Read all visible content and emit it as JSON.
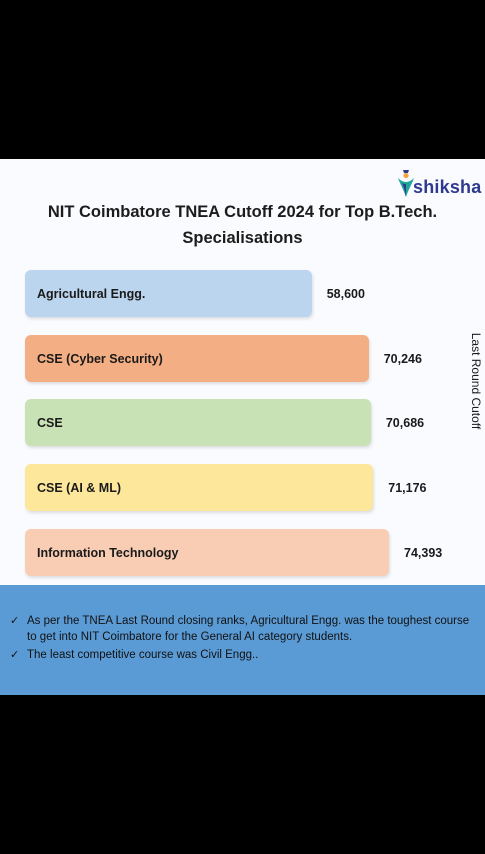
{
  "brand": {
    "name": "shiksha",
    "icon": "shiksha-logo-icon"
  },
  "chart_data": {
    "type": "bar",
    "orientation": "horizontal",
    "title": "NIT Coimbatore TNEA Cutoff 2024 for Top B.Tech. Specialisations",
    "ylabel": "Last Round Cutoff",
    "categories": [
      "Agricultural Engg.",
      "CSE (Cyber Security)",
      "CSE",
      "CSE (AI & ML)",
      "Information Technology"
    ],
    "values": [
      58600,
      70246,
      70686,
      71176,
      74393
    ],
    "value_labels": [
      "58,600",
      "70,246",
      "70,686",
      "71,176",
      "74,393"
    ],
    "colors": [
      "#bcd5ee",
      "#f4ae84",
      "#c9e2b5",
      "#fde79a",
      "#f9cdb3"
    ],
    "xlim": [
      0,
      77000
    ],
    "grid": false,
    "legend": "none"
  },
  "notes": [
    "As per the TNEA Last Round closing ranks, Agricultural Engg. was the toughest course to get into NIT Coimbatore for the General AI category students.",
    "The least competitive course was Civil Engg.."
  ],
  "note_icon": "check-icon",
  "note_check": "✓"
}
